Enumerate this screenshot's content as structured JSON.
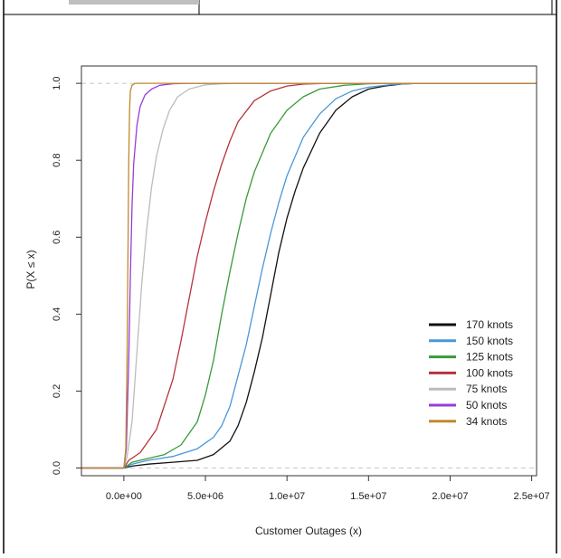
{
  "chart_data": {
    "type": "line",
    "title": "",
    "xlabel": "Customer Outages (x)",
    "ylabel": "P(X ≤ x)",
    "xlim": [
      -2600000,
      25300000
    ],
    "ylim": [
      -0.02,
      1.045
    ],
    "xticks": [
      0,
      5000000,
      10000000,
      15000000,
      20000000,
      25000000
    ],
    "xtick_labels": [
      "0.0e+00",
      "5.0e+06",
      "1.0e+07",
      "1.5e+07",
      "2.0e+07",
      "2.5e+07"
    ],
    "yticks": [
      0.0,
      0.2,
      0.4,
      0.6,
      0.8,
      1.0
    ],
    "ytick_labels": [
      "0.0",
      "0.2",
      "0.4",
      "0.6",
      "0.8",
      "1.0"
    ],
    "reference_lines": [
      0,
      1
    ],
    "legend_position": "bottom-right",
    "series": [
      {
        "name": "170 knots",
        "color": "#111111",
        "x": [
          -2600000,
          0,
          500000,
          1500000,
          3000000,
          4500000,
          5500000,
          6500000,
          7000000,
          7500000,
          8000000,
          8500000,
          9000000,
          9500000,
          10000000,
          10500000,
          11000000,
          12000000,
          13000000,
          14000000,
          15000000,
          16000000,
          17000000,
          18000000,
          19000000,
          25300000
        ],
        "y": [
          0,
          0,
          0.005,
          0.01,
          0.015,
          0.02,
          0.035,
          0.07,
          0.11,
          0.17,
          0.25,
          0.34,
          0.45,
          0.56,
          0.65,
          0.72,
          0.78,
          0.87,
          0.93,
          0.965,
          0.985,
          0.993,
          0.998,
          1.0,
          1.0,
          1.0
        ]
      },
      {
        "name": "150 knots",
        "color": "#4a97d8",
        "x": [
          -2600000,
          0,
          500000,
          1500000,
          3000000,
          4500000,
          5500000,
          6000000,
          6500000,
          7000000,
          7500000,
          8000000,
          8500000,
          9000000,
          9500000,
          10000000,
          11000000,
          12000000,
          13000000,
          14000000,
          15000000,
          16500000,
          18000000,
          25300000
        ],
        "y": [
          0,
          0,
          0.01,
          0.02,
          0.03,
          0.05,
          0.08,
          0.11,
          0.16,
          0.24,
          0.32,
          0.42,
          0.52,
          0.61,
          0.69,
          0.76,
          0.86,
          0.92,
          0.96,
          0.98,
          0.99,
          0.997,
          1.0,
          1.0
        ]
      },
      {
        "name": "125 knots",
        "color": "#3a9a3a",
        "x": [
          -2600000,
          0,
          500000,
          1500000,
          2500000,
          3500000,
          4500000,
          5000000,
          5500000,
          6000000,
          6500000,
          7000000,
          7500000,
          8000000,
          9000000,
          10000000,
          11000000,
          12000000,
          13500000,
          15000000,
          16500000,
          25300000
        ],
        "y": [
          0,
          0,
          0.015,
          0.025,
          0.035,
          0.06,
          0.12,
          0.19,
          0.28,
          0.4,
          0.51,
          0.61,
          0.7,
          0.77,
          0.87,
          0.93,
          0.965,
          0.985,
          0.995,
          0.999,
          1.0,
          1.0
        ]
      },
      {
        "name": "100 knots",
        "color": "#b7333a",
        "x": [
          -2600000,
          0,
          300000,
          1000000,
          2000000,
          3000000,
          3500000,
          4000000,
          4500000,
          5000000,
          5500000,
          6000000,
          6500000,
          7000000,
          8000000,
          9000000,
          10000000,
          11000000,
          12500000,
          14000000,
          25300000
        ],
        "y": [
          0,
          0,
          0.02,
          0.04,
          0.1,
          0.23,
          0.33,
          0.44,
          0.55,
          0.64,
          0.72,
          0.79,
          0.85,
          0.9,
          0.955,
          0.98,
          0.993,
          0.998,
          1.0,
          1.0,
          1.0
        ]
      },
      {
        "name": "75 knots",
        "color": "#bcbcbc",
        "x": [
          -2600000,
          0,
          200000,
          500000,
          800000,
          1100000,
          1400000,
          1700000,
          2000000,
          2400000,
          2800000,
          3300000,
          4000000,
          5000000,
          6000000,
          7000000,
          8000000,
          25300000
        ],
        "y": [
          0,
          0,
          0.03,
          0.12,
          0.3,
          0.48,
          0.62,
          0.73,
          0.81,
          0.88,
          0.93,
          0.965,
          0.985,
          0.996,
          0.999,
          1.0,
          1.0,
          1.0
        ]
      },
      {
        "name": "50 knots",
        "color": "#9a3bd8",
        "x": [
          -2600000,
          0,
          150000,
          300000,
          400000,
          500000,
          600000,
          800000,
          1000000,
          1300000,
          1700000,
          2200000,
          3000000,
          4000000,
          25300000
        ],
        "y": [
          0,
          0,
          0.05,
          0.28,
          0.5,
          0.68,
          0.79,
          0.89,
          0.94,
          0.97,
          0.985,
          0.995,
          0.999,
          1.0,
          1.0
        ]
      },
      {
        "name": "34 knots",
        "color": "#c08a2a",
        "x": [
          -2600000,
          0,
          120000,
          200000,
          250000,
          300000,
          350000,
          400000,
          500000,
          700000,
          25300000
        ],
        "y": [
          0,
          0,
          0.05,
          0.3,
          0.55,
          0.8,
          0.93,
          0.98,
          0.995,
          1.0,
          1.0
        ]
      }
    ]
  }
}
